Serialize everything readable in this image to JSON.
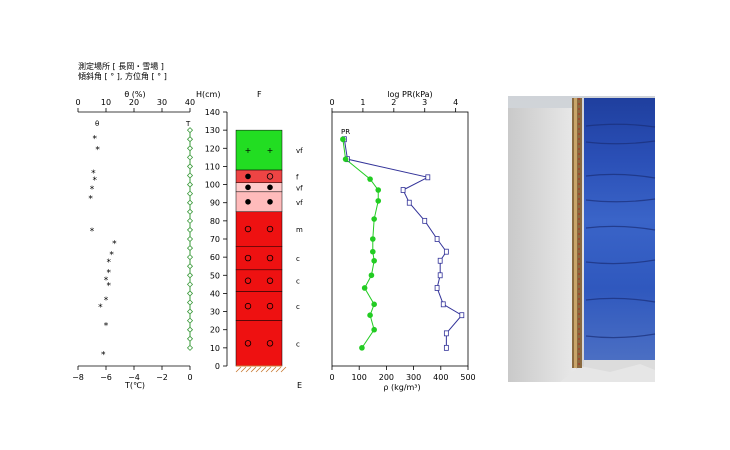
{
  "header": {
    "line1": "測定場所 [ 長岡・雪場 ]",
    "line2": "傾斜角 [ ° ], 方位角 [ ° ]"
  },
  "chart_data": [
    {
      "type": "scatter",
      "top_axis_label": "θ (%)",
      "top_ticks": [
        "0",
        "10",
        "20",
        "30",
        "40"
      ],
      "bottom_axis_label": "T(℃)",
      "bottom_ticks": [
        "−8",
        "−6",
        "−4",
        "−2",
        "0"
      ],
      "theta_range": [
        0,
        40
      ],
      "temp_range": [
        -8,
        0
      ],
      "theta_marker": "θ",
      "temp_marker": "T",
      "theta_series": {
        "heights": [
          126,
          120,
          107,
          103,
          98,
          93,
          75,
          68,
          62,
          58,
          52,
          48,
          45,
          37,
          33,
          23,
          7
        ],
        "values": [
          6,
          7,
          5.5,
          6,
          5,
          4.5,
          5,
          13,
          12,
          11,
          11,
          10,
          11,
          10,
          8,
          10,
          9
        ]
      },
      "temp_series": {
        "heights": [
          130,
          125,
          120,
          115,
          110,
          105,
          100,
          95,
          90,
          85,
          80,
          75,
          70,
          65,
          60,
          55,
          50,
          45,
          40,
          35,
          30,
          25,
          20,
          15,
          10
        ],
        "values": [
          0,
          0,
          0,
          0,
          0,
          0,
          0,
          0,
          0,
          0,
          0,
          0,
          0,
          0,
          0,
          0,
          0,
          0,
          0,
          0,
          0,
          0,
          0,
          0,
          0
        ]
      },
      "colors": {
        "temp": "#3a9a3a",
        "theta": "#000000"
      }
    },
    {
      "type": "table",
      "height_label": "H(cm)",
      "column_label": "F",
      "bottom_label": "E",
      "height_ticks": [
        "0",
        "10",
        "20",
        "30",
        "40",
        "50",
        "60",
        "70",
        "80",
        "90",
        "100",
        "110",
        "120",
        "130",
        "140"
      ],
      "height_range": [
        0,
        140
      ],
      "layers": [
        {
          "bottom": 108,
          "top": 130,
          "color": "#22dd22",
          "grain": "+",
          "hardness": "vf"
        },
        {
          "bottom": 101,
          "top": 108,
          "color": "#ee4444",
          "grain": "●○",
          "hardness": "f"
        },
        {
          "bottom": 96,
          "top": 101,
          "color": "#ffcccc",
          "grain": "●●",
          "hardness": "vf"
        },
        {
          "bottom": 85,
          "top": 96,
          "color": "#ffbbbb",
          "grain": "●●",
          "hardness": "vf"
        },
        {
          "bottom": 66,
          "top": 85,
          "color": "#ee1111",
          "grain": "○○",
          "hardness": "m"
        },
        {
          "bottom": 53,
          "top": 66,
          "color": "#ee1111",
          "grain": "○○",
          "hardness": "c"
        },
        {
          "bottom": 41,
          "top": 53,
          "color": "#ee1111",
          "grain": "○○",
          "hardness": "c"
        },
        {
          "bottom": 25,
          "top": 41,
          "color": "#ee1111",
          "grain": "○○",
          "hardness": "c"
        },
        {
          "bottom": 0,
          "top": 25,
          "color": "#ee1111",
          "grain": "○○",
          "hardness": "c"
        }
      ]
    },
    {
      "type": "line",
      "top_axis_label": "log PR(kPa)",
      "top_ticks": [
        "0",
        "1",
        "2",
        "3",
        "4"
      ],
      "bottom_axis_label": "ρ (kg/m³)",
      "bottom_ticks": [
        "0",
        "100",
        "200",
        "300",
        "400",
        "500"
      ],
      "density_range": [
        0,
        500
      ],
      "pr_range": [
        0,
        4.4
      ],
      "pr_label": "PR",
      "density_series": {
        "heights": [
          125,
          114,
          103,
          97,
          91,
          81,
          70,
          63,
          58,
          50,
          43,
          34,
          28,
          20,
          10
        ],
        "values": [
          40,
          50,
          140,
          170,
          170,
          155,
          150,
          150,
          155,
          145,
          120,
          155,
          140,
          155,
          110
        ]
      },
      "pr_series": {
        "heights": [
          125,
          114,
          104,
          97,
          90,
          80,
          70,
          63,
          58,
          50,
          43,
          34,
          28,
          18,
          10
        ],
        "values": [
          0.4,
          0.5,
          3.1,
          2.3,
          2.5,
          3.0,
          3.4,
          3.7,
          3.5,
          3.5,
          3.4,
          3.6,
          4.2,
          3.7,
          3.7
        ]
      },
      "colors": {
        "density": "#22cc22",
        "pr": "#333399"
      }
    }
  ],
  "photo": {
    "description_colors": {
      "snow": "#e2e2e2",
      "dye": "#2a4fb0",
      "ruler": "#8a6a40"
    }
  }
}
